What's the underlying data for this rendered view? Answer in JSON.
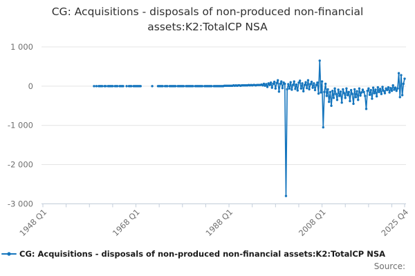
{
  "title": "CG: Acquisitions - disposals of non-produced non-financial assets:K2:TotalCP NSA",
  "legend": {
    "label": "CG: Acquisitions - disposals of non-produced non-financial assets:K2:TotalCP NSA",
    "marker": "line-with-dot"
  },
  "source_label": "Source:",
  "colors": {
    "series": "#1575bd",
    "grid": "#e4e4e4",
    "axis": "#c3cedb",
    "text": "#6e6e6e",
    "title": "#2f2f2f",
    "legend": "#1a1a1a"
  },
  "chart_data": {
    "type": "line",
    "title": "CG: Acquisitions - disposals of non-produced non-financial assets:K2:TotalCP NSA",
    "xlabel": "",
    "ylabel": "",
    "frequency": "quarterly",
    "x_start": "1948 Q1",
    "x_end": "2025 Q4",
    "ylim": [
      -3000,
      1000
    ],
    "y_ticks": [
      1000,
      0,
      -1000,
      -2000,
      -3000
    ],
    "y_tick_labels": [
      "1 000",
      "0",
      "-1 000",
      "-2 000",
      "-3 000"
    ],
    "x_ticks_every_quarters": 20,
    "x_end_tick_index": 311,
    "x_labels": [
      {
        "index": 0,
        "label": "1948 Q1"
      },
      {
        "index": 80,
        "label": "1968 Q1"
      },
      {
        "index": 160,
        "label": "1988 Q1"
      },
      {
        "index": 240,
        "label": "2008 Q1"
      },
      {
        "index": 311,
        "label": "2025 Q4"
      }
    ],
    "grid": "horizontal",
    "legend_position": "bottom-left",
    "series": [
      {
        "name": "CG: Acquisitions - disposals of non-produced non-financial assets:K2:TotalCP NSA",
        "start": "1948 Q1",
        "values": [
          null,
          null,
          null,
          null,
          null,
          null,
          null,
          null,
          null,
          null,
          null,
          null,
          null,
          null,
          null,
          null,
          null,
          null,
          null,
          null,
          null,
          null,
          null,
          null,
          null,
          null,
          null,
          null,
          null,
          null,
          null,
          null,
          null,
          null,
          null,
          null,
          null,
          null,
          null,
          null,
          null,
          null,
          null,
          null,
          0,
          null,
          0,
          null,
          0,
          0,
          0,
          0,
          null,
          0,
          0,
          null,
          0,
          0,
          0,
          0,
          0,
          null,
          0,
          0,
          0,
          null,
          0,
          0,
          0,
          0,
          null,
          null,
          0,
          null,
          0,
          0,
          0,
          null,
          0,
          0,
          0,
          0,
          0,
          0,
          0,
          null,
          null,
          null,
          null,
          null,
          null,
          null,
          null,
          null,
          0,
          null,
          null,
          null,
          null,
          0,
          0,
          0,
          0,
          0,
          null,
          0,
          0,
          0,
          null,
          0,
          0,
          0,
          0,
          0,
          0,
          null,
          0,
          0,
          0,
          0,
          0,
          0,
          null,
          0,
          0,
          0,
          0,
          0,
          0,
          0,
          null,
          0,
          0,
          0,
          0,
          0,
          0,
          0,
          null,
          0,
          0,
          0,
          0,
          0,
          0,
          0,
          null,
          0,
          0,
          0,
          0,
          0,
          0,
          0,
          0,
          0,
          10,
          10,
          10,
          10,
          10,
          10,
          10,
          10,
          20,
          10,
          20,
          10,
          20,
          20,
          10,
          20,
          20,
          20,
          20,
          20,
          20,
          30,
          20,
          30,
          20,
          30,
          30,
          20,
          30,
          30,
          30,
          30,
          40,
          20,
          60,
          10,
          50,
          -20,
          70,
          30,
          90,
          -40,
          60,
          110,
          -60,
          80,
          150,
          -140,
          60,
          120,
          -50,
          90,
          60,
          -2800,
          -80,
          50,
          -60,
          100,
          -90,
          30,
          120,
          -70,
          40,
          -110,
          90,
          140,
          -60,
          70,
          -130,
          30,
          100,
          -50,
          150,
          -80,
          50,
          110,
          -40,
          70,
          -100,
          30,
          90,
          -190,
          650,
          -160,
          120,
          -1050,
          -150,
          60,
          -250,
          -80,
          -400,
          -150,
          -500,
          -120,
          -300,
          -60,
          -200,
          -350,
          -90,
          -250,
          -140,
          -420,
          -80,
          -180,
          -300,
          -60,
          -230,
          -150,
          -380,
          -100,
          -200,
          -450,
          -80,
          -280,
          -130,
          -350,
          -60,
          -240,
          -160,
          -90,
          -150,
          -250,
          -580,
          -120,
          -60,
          -220,
          -100,
          -320,
          -40,
          -180,
          -90,
          -260,
          -30,
          -150,
          -70,
          -200,
          -20,
          -120,
          -180,
          -60,
          -100,
          -30,
          -160,
          -50,
          -120,
          20,
          -90,
          -40,
          -120,
          -60,
          330,
          -280,
          280,
          -230,
          60,
          190
        ]
      }
    ]
  }
}
